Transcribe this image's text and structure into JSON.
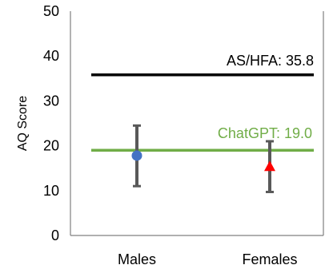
{
  "chart_data": {
    "type": "scatter",
    "ylabel": "AQ Score",
    "xlabel": "",
    "ylim": [
      0,
      50
    ],
    "yticks": [
      0,
      10,
      20,
      30,
      40,
      50
    ],
    "categories": [
      "Males",
      "Females"
    ],
    "grid": false,
    "series": [
      {
        "category": "Males",
        "marker": "circle",
        "color": "#4472c4",
        "value": 17.8,
        "error_low": 11.0,
        "error_high": 24.5
      },
      {
        "category": "Females",
        "marker": "triangle",
        "color": "#ff0000",
        "value": 15.3,
        "error_low": 9.7,
        "error_high": 21.0
      }
    ],
    "error_bar_color": "#595959",
    "reference_lines": [
      {
        "label": "AS/HFA: 35.8",
        "value": 35.8,
        "color": "#000000"
      },
      {
        "label": "ChatGPT: 19.0",
        "value": 19.0,
        "color": "#70ad47"
      }
    ]
  }
}
